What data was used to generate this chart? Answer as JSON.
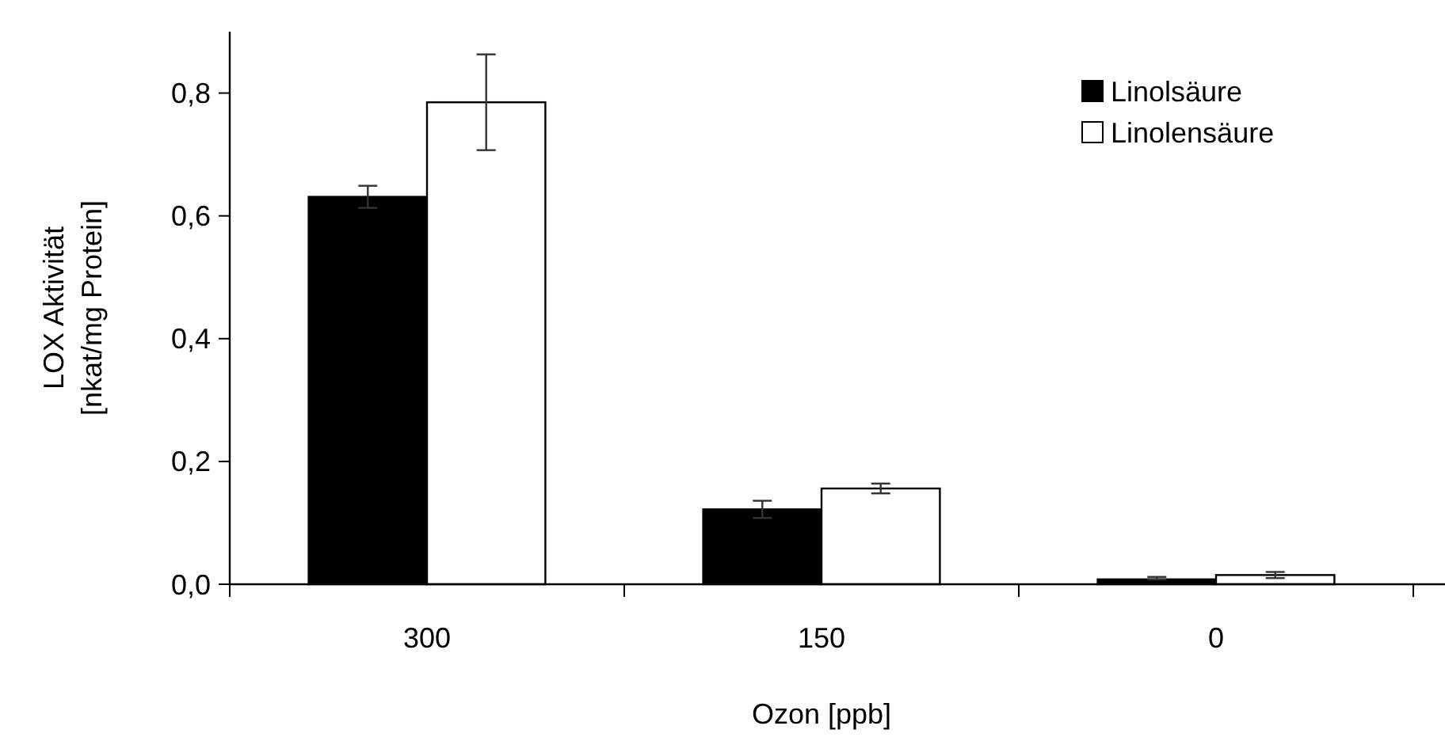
{
  "chart_data": {
    "type": "bar",
    "xlabel": "Ozon [ppb]",
    "ylabel": "LOX Aktivität\n[nkat/mg Protein]",
    "categories": [
      "300",
      "150",
      "0"
    ],
    "series": [
      {
        "name": "Linolsäure",
        "color": "#000000",
        "values": [
          0.631,
          0.122,
          0.008
        ],
        "errors": [
          0.018,
          0.014,
          [
            0.008,
            0.012
          ]
        ]
      },
      {
        "name": "Linolensäure",
        "color": "#ffffff",
        "values": [
          0.785,
          0.156,
          0.015
        ],
        "errors": [
          0.078,
          0.008,
          0.005
        ]
      }
    ],
    "ylim": [
      0,
      0.9
    ],
    "yticks": [
      {
        "value": 0,
        "label": "0,0"
      },
      {
        "value": 0.2,
        "label": "0,2"
      },
      {
        "value": 0.4,
        "label": "0,4"
      },
      {
        "value": 0.6,
        "label": "0,6"
      },
      {
        "value": 0.8,
        "label": "0,8"
      }
    ],
    "grid": false,
    "legend": "top right"
  }
}
